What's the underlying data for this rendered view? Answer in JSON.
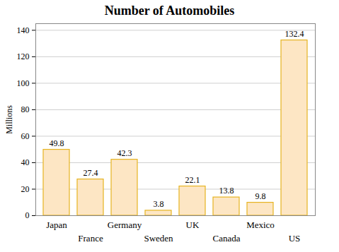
{
  "chart_data": {
    "type": "bar",
    "title": "Number of Automobiles",
    "y_label": "Millions",
    "categories": [
      "Japan",
      "France",
      "Germany",
      "Sweden",
      "UK",
      "Canada",
      "Mexico",
      "US"
    ],
    "values": [
      49.8,
      27.4,
      42.3,
      3.8,
      22.1,
      13.8,
      9.8,
      132.4
    ],
    "color": "#fde6c4",
    "ylim": [
      0,
      145
    ],
    "yticks": [
      0,
      20,
      40,
      60,
      80,
      100,
      120,
      140
    ],
    "grid": true,
    "data_labels": true
  }
}
